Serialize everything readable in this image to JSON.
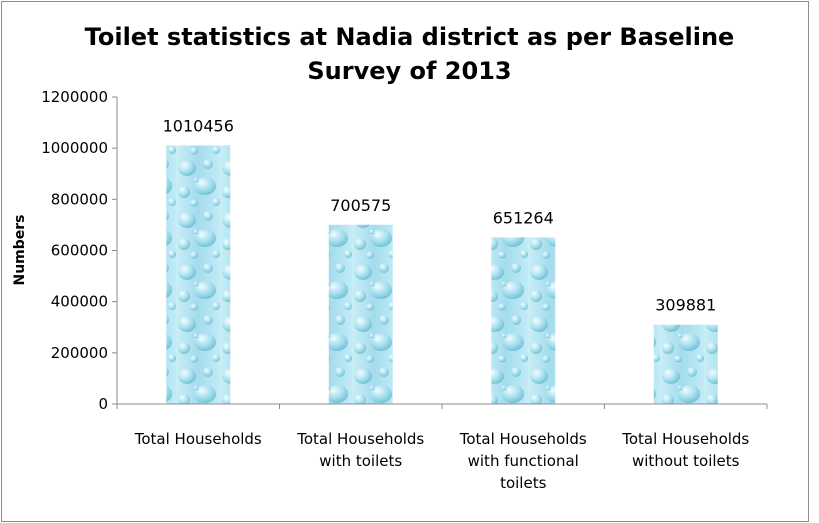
{
  "chart_data": {
    "type": "bar",
    "title_lines": [
      "Toilet statistics at Nadia district as per Baseline",
      "Survey of 2013"
    ],
    "xlabel": "",
    "ylabel": "Numbers",
    "ylim": [
      0,
      1200000
    ],
    "yticks": [
      0,
      200000,
      400000,
      600000,
      800000,
      1000000,
      1200000
    ],
    "yticks_text": [
      "0",
      "200000",
      "400000",
      "600000",
      "800000",
      "1000000",
      "1200000"
    ],
    "grid": false,
    "legend": "none",
    "categories": [
      [
        "Total Households"
      ],
      [
        "Total Households",
        "with toilets"
      ],
      [
        "Total Households",
        "with functional",
        "toilets"
      ],
      [
        "Total Households",
        "without toilets"
      ]
    ],
    "values": [
      1010456,
      700575,
      651264,
      309881
    ],
    "data_labels": [
      "1010456",
      "700575",
      "651264",
      "309881"
    ],
    "bar_fill": "water-droplet-texture",
    "bar_color": "#a8dfee"
  }
}
